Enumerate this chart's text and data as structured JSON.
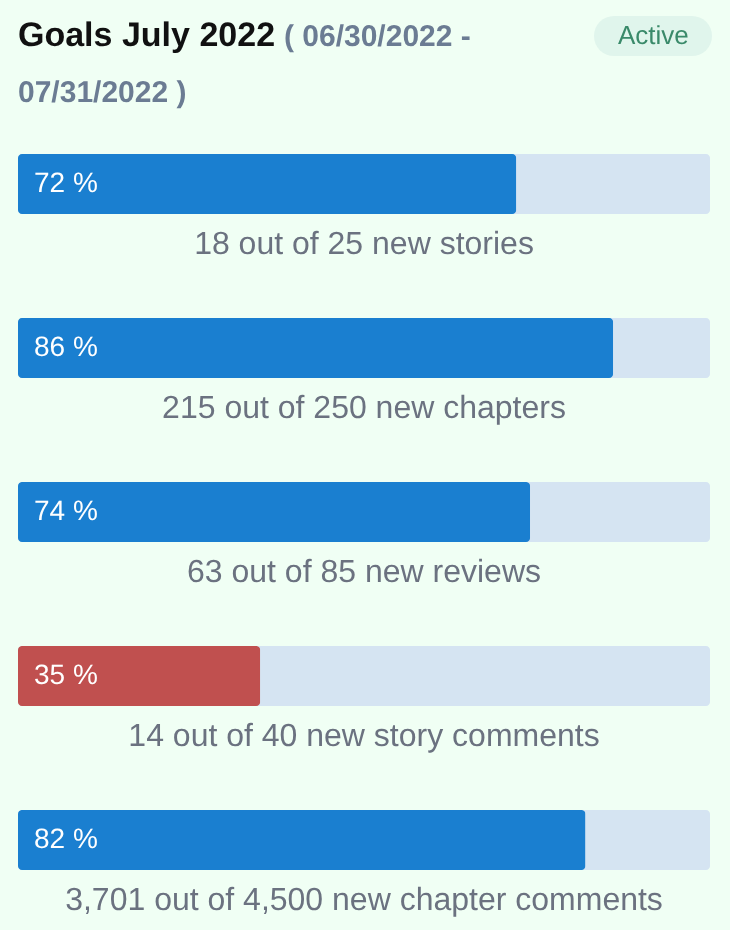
{
  "chart_data": {
    "type": "bar",
    "orientation": "horizontal",
    "title": "Goals July 2022",
    "subtitle": "( 06/30/2022 - 07/31/2022 )",
    "annotations": [
      "Active"
    ],
    "categories": [
      "18 out of 25 new stories",
      "215 out of 250 new chapters",
      "63 out of 85 new reviews",
      "14 out of 40 new story comments",
      "3,701 out of 4,500 new chapter comments"
    ],
    "values": [
      72,
      86,
      74,
      35,
      82
    ],
    "colors": [
      "#1a7fd0",
      "#1a7fd0",
      "#1a7fd0",
      "#c0504f",
      "#1a7fd0"
    ],
    "value_labels": [
      "72 %",
      "86 %",
      "74 %",
      "35 %",
      "82 %"
    ],
    "xlim": [
      0,
      100
    ],
    "tick_labels": false
  }
}
